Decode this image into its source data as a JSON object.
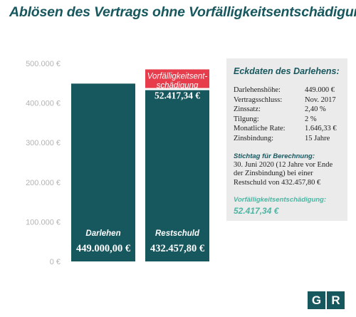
{
  "title": "Ablösen des Vertrags ohne Vorfälligkeitsentschädigung",
  "chart_data": {
    "type": "bar",
    "stacked": true,
    "ylim": [
      0,
      500000
    ],
    "yticks": [
      {
        "value": 0,
        "label": "0 €"
      },
      {
        "value": 100000,
        "label": "100.000 €"
      },
      {
        "value": 200000,
        "label": "200.000 €"
      },
      {
        "value": 300000,
        "label": "300.000 €"
      },
      {
        "value": 400000,
        "label": "400.000 €"
      },
      {
        "value": 500000,
        "label": "500.000 €"
      }
    ],
    "categories": [
      "Darlehen",
      "Restschuld"
    ],
    "bars": [
      {
        "label": "Darlehen",
        "value": 449000.0,
        "value_label": "449.000,00 €",
        "color": "#17575e"
      },
      {
        "label": "Restschuld",
        "value": 432457.8,
        "value_label": "432.457,80 €",
        "color": "#17575e"
      }
    ],
    "stacked_segment": {
      "category": "Restschuld",
      "label_line1": "Vorfälligkeitsent-",
      "label_line2": "schädigung",
      "value": 52417.34,
      "value_label": "52.417,34 €",
      "color": "#e63c4b"
    }
  },
  "info_box": {
    "title": "Eckdaten des Darlehens:",
    "rows": [
      {
        "label": "Darlehenshöhe:",
        "value": "449.000 €"
      },
      {
        "label": "Vertragsschluss:",
        "value": "Nov. 2017"
      },
      {
        "label": "Zinssatz:",
        "value": "2,40 %"
      },
      {
        "label": "Tilgung:",
        "value": "2 %"
      },
      {
        "label": "Monatliche Rate:",
        "value": "1.646,33 €"
      },
      {
        "label": "Zinsbindung:",
        "value": "15 Jahre"
      }
    ],
    "stichtag_title": "Stichtag für Berechnung:",
    "stichtag_text": "30. Juni 2020 (12 Jahre vor Ende der Zinsbindung) bei einer Restschuld von 432.457,80 €",
    "penalty_title": "Vorfälligkeitsentschädigung:",
    "penalty_value": "52.417,34 €"
  },
  "logo": {
    "letter1": "G",
    "letter2": "R"
  },
  "colors": {
    "primary": "#17575e",
    "accent": "#e63c4b",
    "highlight": "#4db5a3",
    "panel": "#ebebeb"
  }
}
